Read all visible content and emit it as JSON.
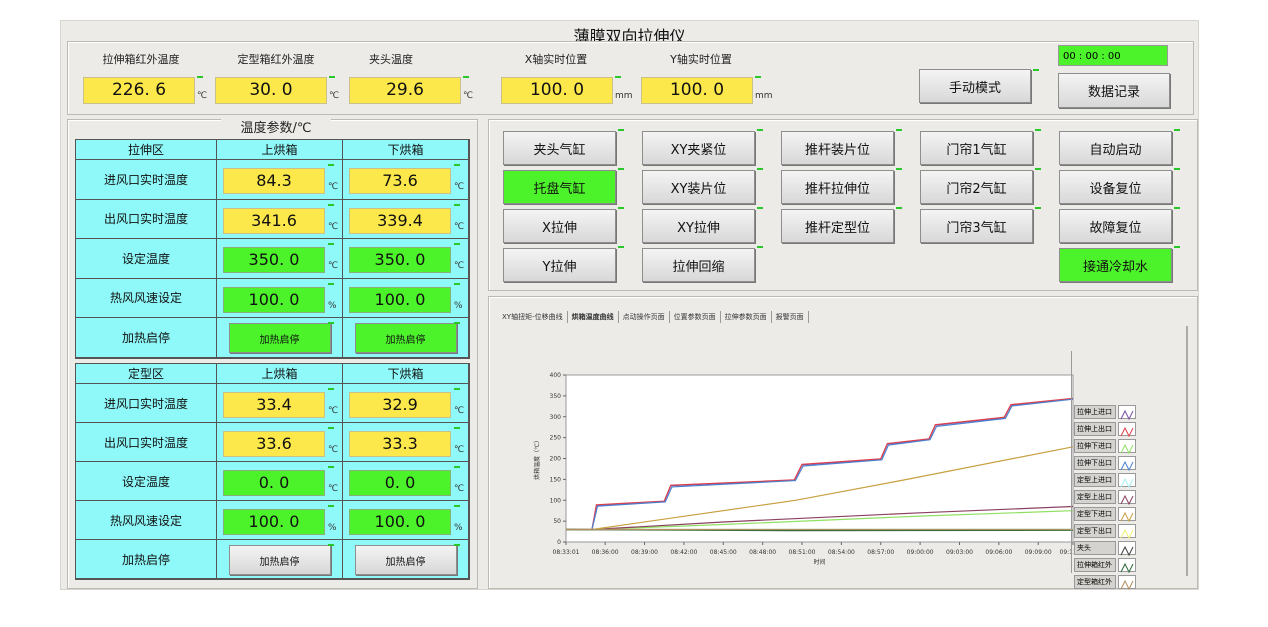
{
  "title": "薄膜双向拉伸仪",
  "top": {
    "fields": [
      {
        "label": "拉伸箱红外温度",
        "value": "226. 6",
        "unit": "℃"
      },
      {
        "label": "定型箱红外温度",
        "value": "30. 0",
        "unit": "℃"
      },
      {
        "label": "夹头温度",
        "value": "29.6",
        "unit": "℃"
      },
      {
        "label": "X轴实时位置",
        "value": "100. 0",
        "unit": "mm"
      },
      {
        "label": "Y轴实时位置",
        "value": "100. 0",
        "unit": "mm"
      }
    ],
    "manual_mode": "手动模式",
    "data_record": "数据记录",
    "clock": "00  :  00  :  00"
  },
  "temp": {
    "title": "温度参数/℃",
    "zones": [
      {
        "name": "拉伸区",
        "cols": [
          "上烘箱",
          "下烘箱"
        ],
        "rows": [
          {
            "label": "进风口实时温度",
            "upper": "84.3",
            "lower": "73.6",
            "unit": "℃",
            "kind": "y"
          },
          {
            "label": "出风口实时温度",
            "upper": "341.6",
            "lower": "339.4",
            "unit": "℃",
            "kind": "y"
          },
          {
            "label": "设定温度",
            "upper": "350. 0",
            "lower": "350. 0",
            "unit": "℃",
            "kind": "g"
          },
          {
            "label": "热风风速设定",
            "upper": "100. 0",
            "lower": "100. 0",
            "unit": "%",
            "kind": "g"
          },
          {
            "label": "加热启停",
            "upper": "加热启停",
            "lower": "加热启停",
            "kind": "b",
            "on": true
          }
        ]
      },
      {
        "name": "定型区",
        "cols": [
          "上烘箱",
          "下烘箱"
        ],
        "rows": [
          {
            "label": "进风口实时温度",
            "upper": "33.4",
            "lower": "32.9",
            "unit": "℃",
            "kind": "y"
          },
          {
            "label": "出风口实时温度",
            "upper": "33.6",
            "lower": "33.3",
            "unit": "℃",
            "kind": "y"
          },
          {
            "label": "设定温度",
            "upper": "0. 0",
            "lower": "0. 0",
            "unit": "℃",
            "kind": "g"
          },
          {
            "label": "热风风速设定",
            "upper": "100. 0",
            "lower": "100. 0",
            "unit": "%",
            "kind": "g"
          },
          {
            "label": "加热启停",
            "upper": "加热启停",
            "lower": "加热启停",
            "kind": "b",
            "on": false
          }
        ]
      }
    ]
  },
  "buttons": [
    [
      {
        "label": "夹头气缸"
      },
      {
        "label": "XY夹紧位"
      },
      {
        "label": "推杆装片位"
      },
      {
        "label": "门帘1气缸"
      },
      {
        "label": "自动启动"
      }
    ],
    [
      {
        "label": "托盘气缸",
        "on": true
      },
      {
        "label": "XY装片位"
      },
      {
        "label": "推杆拉伸位"
      },
      {
        "label": "门帘2气缸"
      },
      {
        "label": "设备复位"
      }
    ],
    [
      {
        "label": "X拉伸"
      },
      {
        "label": "XY拉伸"
      },
      {
        "label": "推杆定型位"
      },
      {
        "label": "门帘3气缸"
      },
      {
        "label": "故障复位"
      }
    ],
    [
      {
        "label": "Y拉伸"
      },
      {
        "label": "拉伸回缩"
      },
      null,
      null,
      {
        "label": "接通冷却水",
        "on": true
      }
    ]
  ],
  "tabs": [
    "XY轴扭矩-位移曲线",
    "烘箱温度曲线",
    "点动操作页面",
    "位置参数页面",
    "拉伸参数页面",
    "报警页面"
  ],
  "active_tab": 1,
  "chart_data": {
    "type": "line",
    "xlabel": "时间",
    "ylabel": "烘箱温度（℃）",
    "ylim": [
      0,
      400
    ],
    "yticks": [
      0,
      50,
      100,
      150,
      200,
      250,
      300,
      350,
      400
    ],
    "xlim": [
      "08:33:01",
      "09:11:39"
    ],
    "xticks": [
      "08:33:01",
      "08:36:00",
      "08:39:00",
      "08:42:00",
      "08:45:00",
      "08:48:00",
      "08:51:00",
      "08:54:00",
      "08:57:00",
      "09:00:00",
      "09:03:00",
      "09:06:00",
      "09:09:00",
      "09:11:39"
    ],
    "legend_position": "right",
    "series": [
      {
        "name": "拉伸上进口",
        "color": "#7a4ea0",
        "points": [
          [
            "08:33:01",
            30
          ],
          [
            "08:35:00",
            30
          ],
          [
            "08:35:20",
            88
          ],
          [
            "08:40:30",
            97
          ],
          [
            "08:41:00",
            135
          ],
          [
            "08:50:25",
            148
          ],
          [
            "08:51:00",
            185
          ],
          [
            "08:57:00",
            198
          ],
          [
            "08:57:30",
            235
          ],
          [
            "09:00:40",
            246
          ],
          [
            "09:01:10",
            280
          ],
          [
            "09:06:25",
            298
          ],
          [
            "09:06:55",
            328
          ],
          [
            "09:11:39",
            343
          ]
        ]
      },
      {
        "name": "拉伸上出口",
        "color": "#e0404a",
        "points": [
          [
            "08:33:01",
            30
          ],
          [
            "08:35:00",
            30
          ],
          [
            "08:35:20",
            89
          ],
          [
            "08:40:30",
            98
          ],
          [
            "08:41:00",
            136
          ],
          [
            "08:50:25",
            149
          ],
          [
            "08:51:00",
            186
          ],
          [
            "08:57:00",
            199
          ],
          [
            "08:57:30",
            236
          ],
          [
            "09:00:40",
            247
          ],
          [
            "09:01:10",
            281
          ],
          [
            "09:06:25",
            299
          ],
          [
            "09:06:55",
            329
          ],
          [
            "09:11:39",
            344
          ]
        ]
      },
      {
        "name": "拉伸下进口",
        "color": "#8fe060",
        "points": [
          [
            "08:33:01",
            30
          ],
          [
            "08:35:00",
            30
          ],
          [
            "08:45:00",
            42
          ],
          [
            "09:00:00",
            62
          ],
          [
            "09:11:39",
            75
          ]
        ]
      },
      {
        "name": "拉伸下出口",
        "color": "#4a80d0",
        "points": [
          [
            "08:33:01",
            30
          ],
          [
            "08:35:00",
            30
          ],
          [
            "08:35:25",
            86
          ],
          [
            "08:40:35",
            96
          ],
          [
            "08:41:05",
            132
          ],
          [
            "08:50:30",
            147
          ],
          [
            "08:51:05",
            182
          ],
          [
            "08:57:05",
            197
          ],
          [
            "08:57:35",
            232
          ],
          [
            "09:00:45",
            245
          ],
          [
            "09:01:15",
            277
          ],
          [
            "09:06:30",
            296
          ],
          [
            "09:07:00",
            326
          ],
          [
            "09:11:39",
            342
          ]
        ]
      },
      {
        "name": "定型上进口",
        "color": "#a8f0f4",
        "points": [
          [
            "08:33:01",
            30
          ],
          [
            "09:11:39",
            31
          ]
        ]
      },
      {
        "name": "定型上出口",
        "color": "#8a4060",
        "points": [
          [
            "08:33:01",
            30
          ],
          [
            "08:35:00",
            30
          ],
          [
            "08:45:00",
            48
          ],
          [
            "09:00:00",
            70
          ],
          [
            "09:11:39",
            85
          ]
        ]
      },
      {
        "name": "定型下进口",
        "color": "#c8a040",
        "points": [
          [
            "08:33:01",
            30
          ],
          [
            "08:35:00",
            30
          ],
          [
            "08:50:30",
            100
          ],
          [
            "08:59:00",
            150
          ],
          [
            "09:11:39",
            228
          ]
        ]
      },
      {
        "name": "定型下出口",
        "color": "#f0f070",
        "points": [
          [
            "08:33:01",
            30
          ],
          [
            "09:11:39",
            30
          ]
        ]
      },
      {
        "name": "夹头",
        "color": "#404040",
        "points": [
          [
            "08:33:01",
            30
          ],
          [
            "08:45:00",
            29
          ],
          [
            "09:11:39",
            29
          ]
        ]
      },
      {
        "name": "拉伸箱红外",
        "color": "#2a6a3a",
        "points": [
          [
            "08:33:01",
            30
          ],
          [
            "08:50:00",
            27
          ],
          [
            "09:11:39",
            28
          ]
        ]
      },
      {
        "name": "定型箱红外",
        "color": "#b09060",
        "points": [
          [
            "08:33:01",
            30
          ],
          [
            "09:11:39",
            30
          ]
        ]
      }
    ]
  }
}
